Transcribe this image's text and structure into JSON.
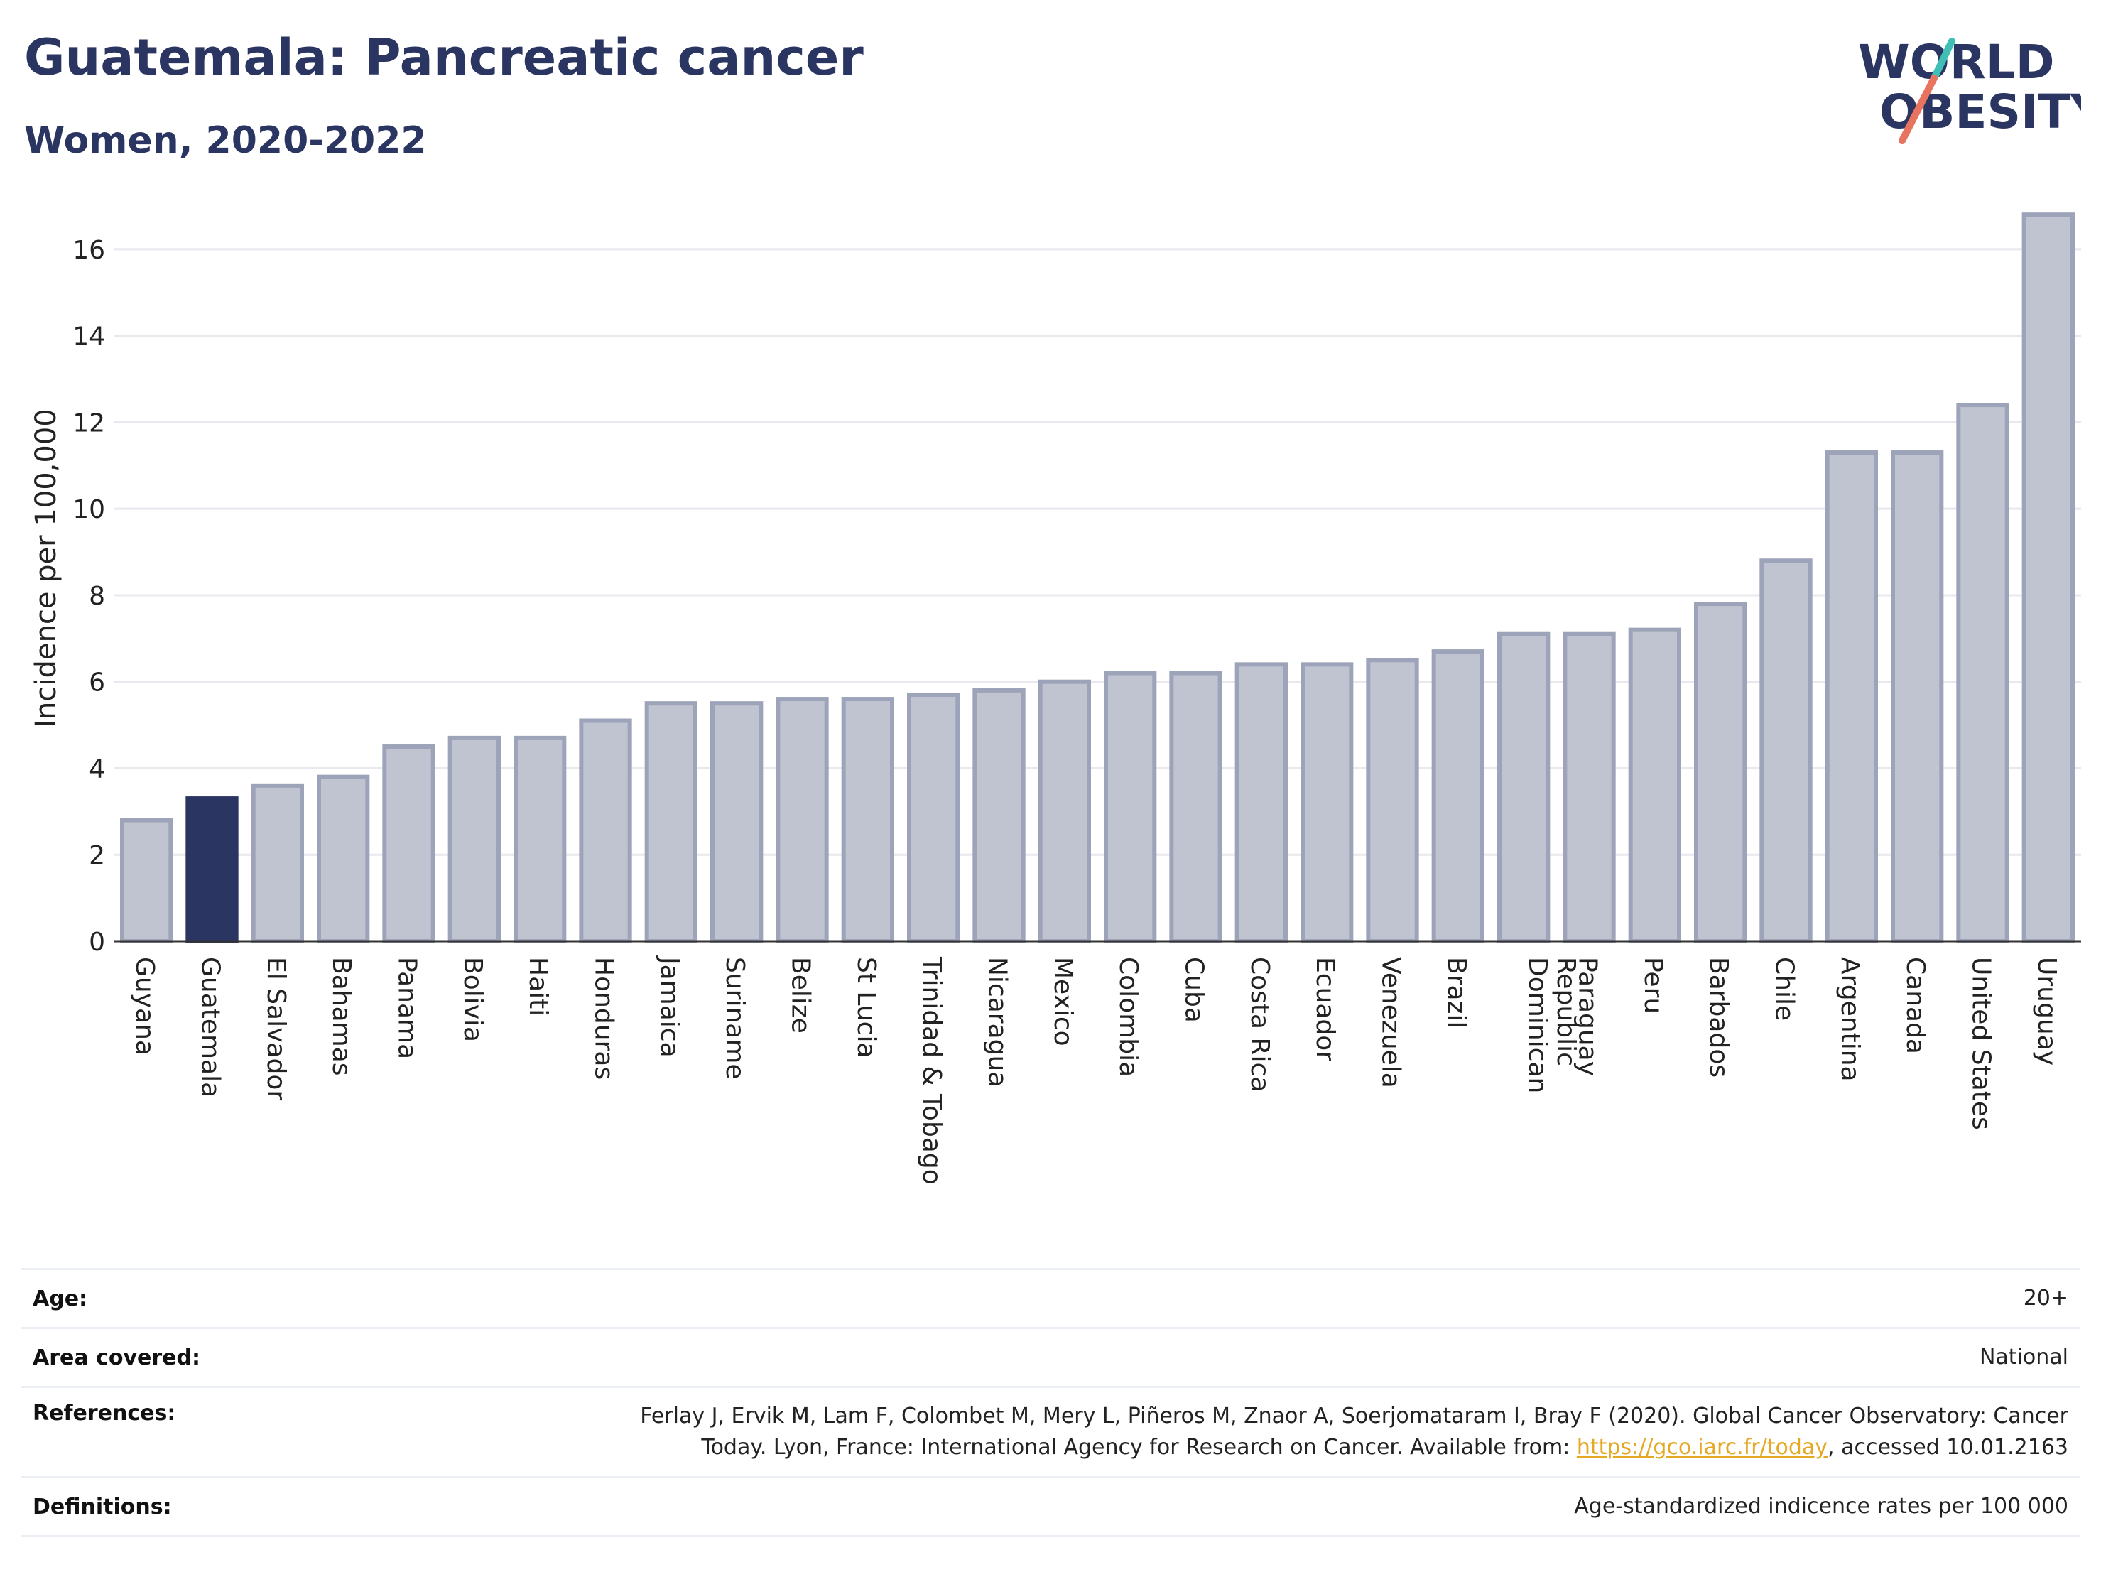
{
  "header": {
    "title": "Guatemala: Pancreatic cancer",
    "subtitle": "Women, 2020-2022",
    "logo_line1": "WORLD",
    "logo_line2": "OBESITY"
  },
  "colors": {
    "highlight": "#2b3561",
    "bar": "#c0c3d0",
    "bar_border": "#9da3b8",
    "logo_teal": "#3fbfb5",
    "logo_coral": "#e8735f",
    "link": "#e5a823"
  },
  "chart_data": {
    "type": "bar",
    "title": "Guatemala: Pancreatic cancer",
    "subtitle": "Women, 2020-2022",
    "xlabel": "",
    "ylabel": "Incidence per 100,000",
    "ylim": [
      0,
      17
    ],
    "yticks": [
      0,
      2,
      4,
      6,
      8,
      10,
      12,
      14,
      16
    ],
    "grid": true,
    "highlight": "Guatemala",
    "categories": [
      "Guyana",
      "Guatemala",
      "El Salvador",
      "Bahamas",
      "Panama",
      "Bolivia",
      "Haiti",
      "Honduras",
      "Jamaica",
      "Suriname",
      "Belize",
      "St Lucia",
      "Trinidad & Tobago",
      "Nicaragua",
      "Mexico",
      "Colombia",
      "Cuba",
      "Costa Rica",
      "Ecuador",
      "Venezuela",
      "Brazil",
      "Dominican Republic",
      "Paraguay",
      "Peru",
      "Barbados",
      "Chile",
      "Argentina",
      "Canada",
      "United States",
      "Uruguay"
    ],
    "values": [
      2.8,
      3.3,
      3.6,
      3.8,
      4.5,
      4.7,
      4.7,
      5.1,
      5.5,
      5.5,
      5.6,
      5.6,
      5.7,
      5.8,
      6.0,
      6.2,
      6.2,
      6.4,
      6.4,
      6.5,
      6.7,
      7.1,
      7.1,
      7.2,
      7.8,
      8.8,
      11.3,
      11.3,
      12.4,
      16.8
    ]
  },
  "meta": {
    "age_label": "Age:",
    "age_value": "20+",
    "area_label": "Area covered:",
    "area_value": "National",
    "ref_label": "References:",
    "ref_text_1": "Ferlay J, Ervik M, Lam F, Colombet M, Mery L, Piñeros M, Znaor A, Soerjomataram I, Bray F (2020). Global Cancer Observatory: Cancer",
    "ref_text_2": "Today. Lyon, France: International Agency for Research on Cancer. Available from: ",
    "ref_link": "https://gco.iarc.fr/today",
    "ref_text_3": ", accessed 10.01.2163",
    "def_label": "Definitions:",
    "def_value": "Age-standardized indicence rates per 100 000"
  }
}
